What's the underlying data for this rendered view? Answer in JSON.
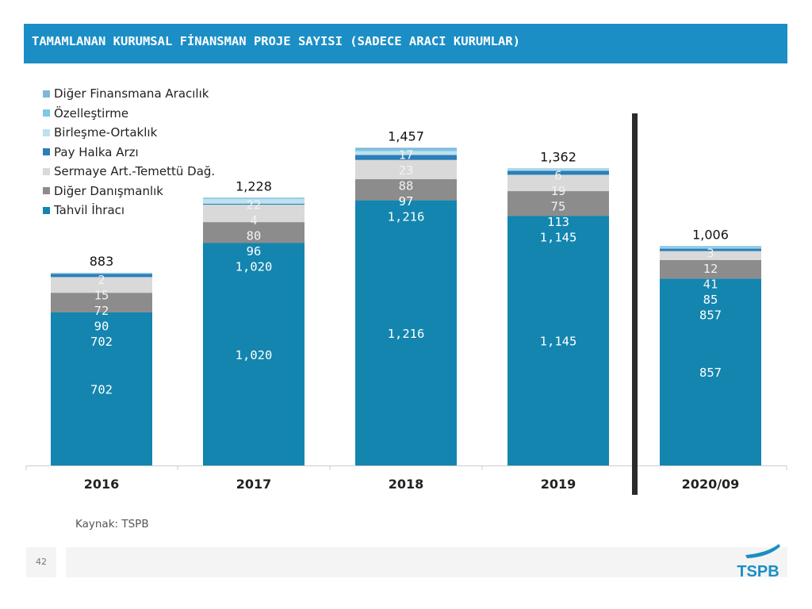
{
  "header": {
    "title": "TAMAMLANAN KURUMSAL FİNANSMAN PROJE SAYISI (SADECE ARACI KURUMLAR)"
  },
  "footer": {
    "source": "Kaynak: TSPB",
    "page_number": "42",
    "logo_text": "TSPB"
  },
  "colors": {
    "title_bar": "#1B8EC6",
    "tahvil": "#1385AF",
    "diger_danismanlik": "#8C8C8C",
    "sermaye": "#D9D9D9",
    "pay_halka": "#2A7FB8",
    "birlesme": "#BFE0EE",
    "ozellestirme": "#7CCBE6",
    "diger_finansmana": "#7FB6DA"
  },
  "chart_data": {
    "type": "bar",
    "stacked": true,
    "title": "TAMAMLANAN KURUMSAL FİNANSMAN PROJE SAYISI (SADECE ARACI KURUMLAR)",
    "categories": [
      "2016",
      "2017",
      "2018",
      "2019",
      "2020/09"
    ],
    "totals": [
      "883",
      "1,228",
      "1,457",
      "1,362",
      "1,006"
    ],
    "ylim": [
      0,
      1600
    ],
    "separator_after_index": 3,
    "series": [
      {
        "name": "Tahvil İhracı",
        "color": "#1385AF",
        "values": [
          702,
          1020,
          1216,
          1145,
          857
        ],
        "labels": [
          "702",
          "1,020",
          "1,216",
          "1,145",
          "857"
        ]
      },
      {
        "name": "Diğer Danışmanlık",
        "color": "#8C8C8C",
        "values": [
          90,
          96,
          97,
          113,
          85
        ],
        "labels": [
          "90",
          "96",
          "97",
          "113",
          "85"
        ]
      },
      {
        "name": "Sermaye Art.-Temettü Dağ.",
        "color": "#D9D9D9",
        "values": [
          72,
          80,
          88,
          75,
          41
        ],
        "labels": [
          "72",
          "80",
          "88",
          "75",
          "41"
        ]
      },
      {
        "name": "Pay Halka Arzı",
        "color": "#2A7FB8",
        "values": [
          15,
          4,
          23,
          19,
          12
        ],
        "labels": [
          "15",
          "4",
          "23",
          "19",
          "12"
        ]
      },
      {
        "name": "Birleşme-Ortaklık",
        "color": "#BFE0EE",
        "values": [
          2,
          22,
          17,
          6,
          3
        ],
        "labels": [
          "2",
          "22",
          "17",
          "6",
          "3"
        ]
      },
      {
        "name": "Özelleştirme",
        "color": "#7CCBE6",
        "values": [
          1,
          3,
          8,
          2,
          4
        ],
        "labels": null
      },
      {
        "name": "Diğer Finansmana Aracılık",
        "color": "#7FB6DA",
        "values": [
          1,
          3,
          8,
          2,
          4
        ],
        "labels": null
      }
    ],
    "legend_position": "top-left"
  }
}
